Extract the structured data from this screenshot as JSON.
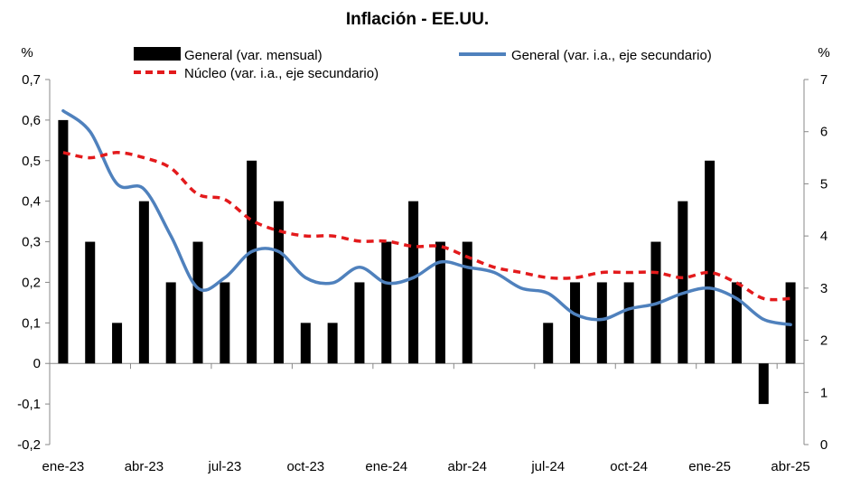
{
  "chart_data": {
    "type": "bar+line",
    "title": "Inflación - EE.UU.",
    "y_left_unit": "%",
    "y_right_unit": "%",
    "y_left": {
      "min": -0.2,
      "max": 0.7,
      "ticks": [
        "-0,2",
        "-0,1",
        "0",
        "0,1",
        "0,2",
        "0,3",
        "0,4",
        "0,5",
        "0,6",
        "0,7"
      ]
    },
    "y_right": {
      "min": 0,
      "max": 7,
      "ticks": [
        "0",
        "1",
        "2",
        "3",
        "4",
        "5",
        "6",
        "7"
      ]
    },
    "x_tick_labels": [
      "ene-23",
      "abr-23",
      "jul-23",
      "oct-23",
      "ene-24",
      "abr-24",
      "jul-24",
      "oct-24",
      "ene-25",
      "abr-25"
    ],
    "months": [
      "ene-23",
      "feb-23",
      "mar-23",
      "abr-23",
      "may-23",
      "jun-23",
      "jul-23",
      "ago-23",
      "sep-23",
      "oct-23",
      "nov-23",
      "dic-23",
      "ene-24",
      "feb-24",
      "mar-24",
      "abr-24",
      "may-24",
      "jun-24",
      "jul-24",
      "ago-24",
      "sep-24",
      "oct-24",
      "nov-24",
      "dic-24",
      "ene-25",
      "feb-25",
      "mar-25",
      "abr-25"
    ],
    "legend_placement": "top",
    "series": [
      {
        "name": "General (var. mensual)",
        "type": "bar",
        "axis": "left",
        "color": "#000000",
        "values": [
          0.6,
          0.3,
          0.1,
          0.4,
          0.2,
          0.3,
          0.2,
          0.5,
          0.4,
          0.1,
          0.1,
          0.2,
          0.3,
          0.4,
          0.3,
          0.3,
          0.0,
          0.0,
          0.1,
          0.2,
          0.2,
          0.2,
          0.3,
          0.4,
          0.5,
          0.2,
          -0.1,
          0.2
        ]
      },
      {
        "name": "General (var. i.a., eje secundario)",
        "type": "line",
        "axis": "right",
        "color": "#4f81bd",
        "style": "solid",
        "values": [
          6.4,
          6.0,
          5.0,
          4.9,
          4.0,
          3.0,
          3.2,
          3.7,
          3.7,
          3.2,
          3.1,
          3.4,
          3.1,
          3.2,
          3.5,
          3.4,
          3.3,
          3.0,
          2.9,
          2.5,
          2.4,
          2.6,
          2.7,
          2.9,
          3.0,
          2.8,
          2.4,
          2.3
        ]
      },
      {
        "name": "Núcleo (var. i.a., eje secundario)",
        "type": "line",
        "axis": "right",
        "color": "#e31a1c",
        "style": "dashed",
        "values": [
          5.6,
          5.5,
          5.6,
          5.5,
          5.3,
          4.8,
          4.7,
          4.3,
          4.1,
          4.0,
          4.0,
          3.9,
          3.9,
          3.8,
          3.8,
          3.6,
          3.4,
          3.3,
          3.2,
          3.2,
          3.3,
          3.3,
          3.3,
          3.2,
          3.3,
          3.1,
          2.8,
          2.8
        ]
      }
    ]
  }
}
